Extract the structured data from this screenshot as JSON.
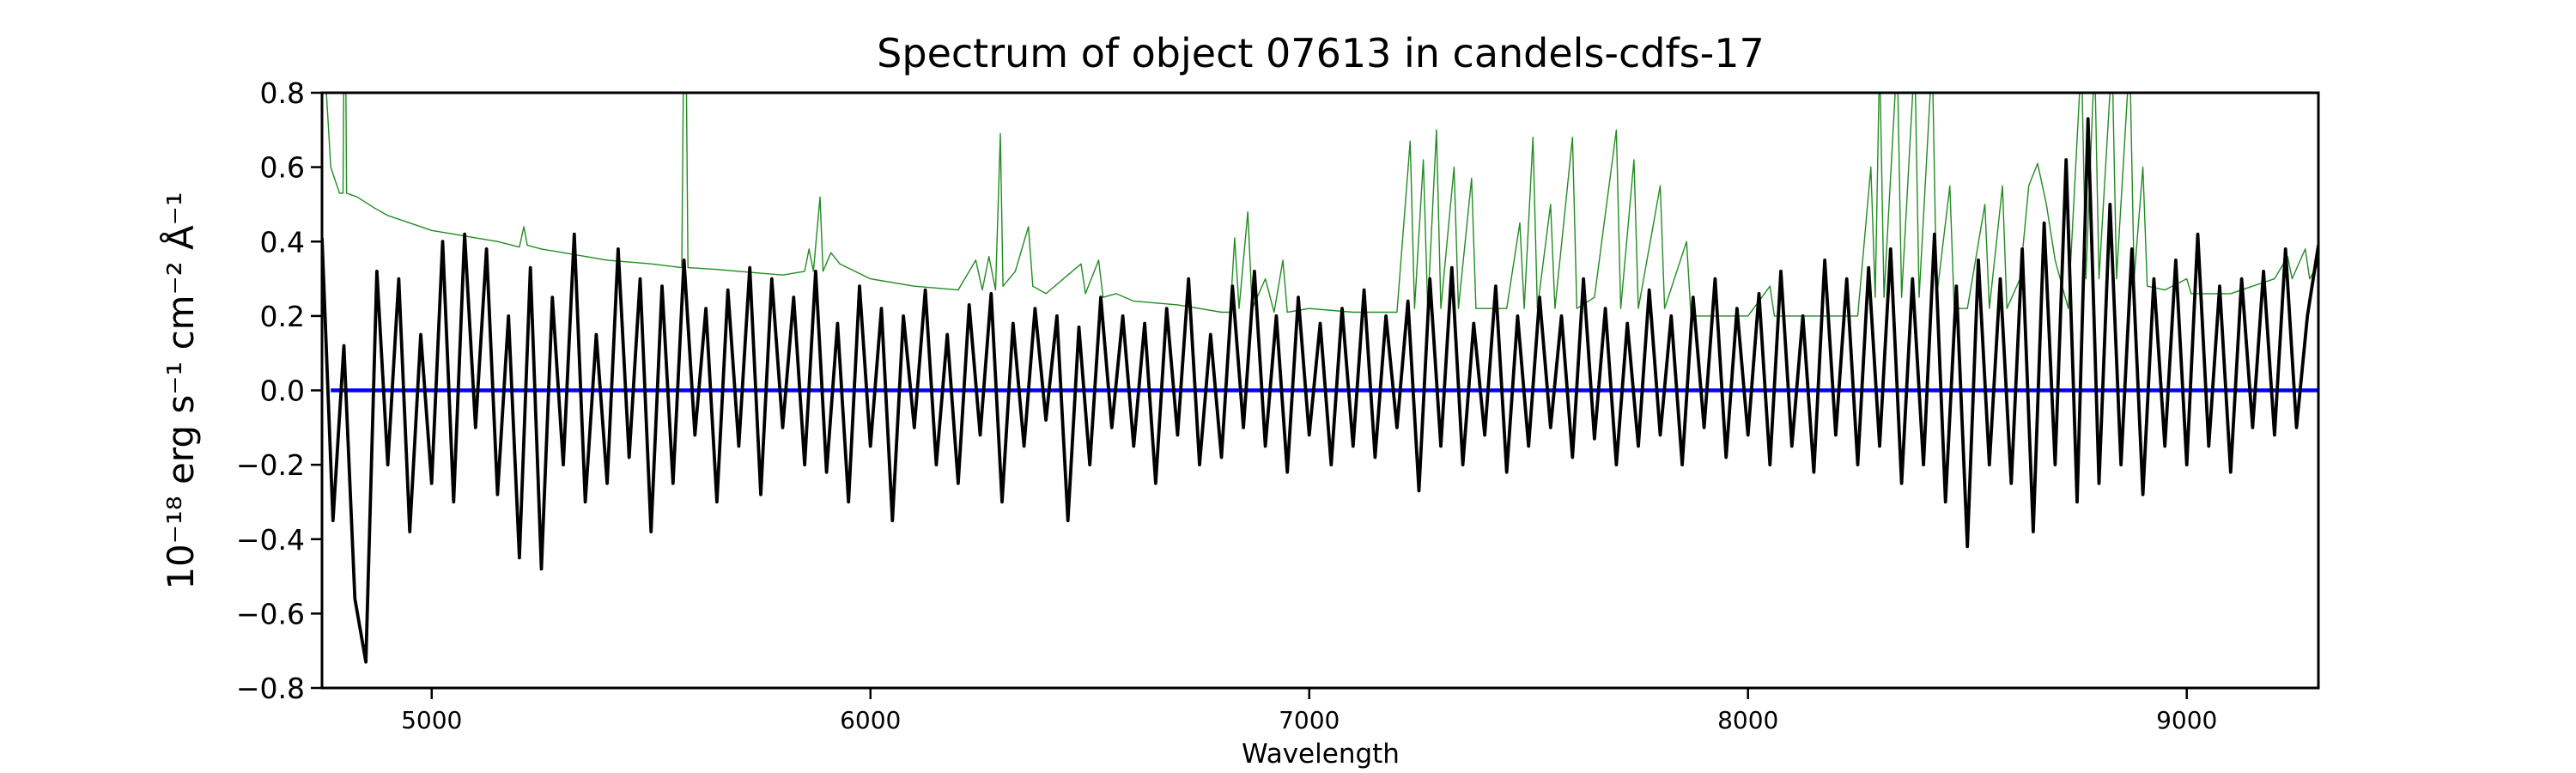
{
  "chart_data": {
    "type": "line",
    "title": "Spectrum of object 07613 in candels-cdfs-17",
    "xlabel": "Wavelength",
    "ylabel": "10⁻¹⁸ erg s⁻¹ cm⁻² Å⁻¹",
    "xlim": [
      4750,
      9300
    ],
    "ylim": [
      -0.8,
      0.8
    ],
    "xticks": [
      5000,
      6000,
      7000,
      8000,
      9000
    ],
    "xtick_labels": [
      "5000",
      "6000",
      "7000",
      "8000",
      "9000"
    ],
    "yticks": [
      -0.8,
      -0.6,
      -0.4,
      -0.2,
      0.0,
      0.2,
      0.4,
      0.6,
      0.8
    ],
    "ytick_labels": [
      "−0.8",
      "−0.6",
      "−0.4",
      "−0.2",
      "0.0",
      "0.2",
      "0.4",
      "0.6",
      "0.8"
    ],
    "grid": false,
    "series": [
      {
        "role": "flux",
        "color": "#000000",
        "x_start": 4750,
        "x_step": 25,
        "values": [
          0.41,
          -0.35,
          0.12,
          -0.56,
          -0.73,
          0.32,
          -0.2,
          0.3,
          -0.38,
          0.15,
          -0.25,
          0.4,
          -0.3,
          0.42,
          -0.1,
          0.38,
          -0.28,
          0.2,
          -0.45,
          0.33,
          -0.48,
          0.25,
          -0.2,
          0.42,
          -0.3,
          0.15,
          -0.25,
          0.38,
          -0.18,
          0.3,
          -0.38,
          0.28,
          -0.25,
          0.35,
          -0.12,
          0.22,
          -0.3,
          0.27,
          -0.15,
          0.33,
          -0.28,
          0.3,
          -0.1,
          0.25,
          -0.2,
          0.32,
          -0.22,
          0.18,
          -0.3,
          0.28,
          -0.15,
          0.22,
          -0.35,
          0.2,
          -0.1,
          0.27,
          -0.2,
          0.15,
          -0.25,
          0.23,
          -0.12,
          0.26,
          -0.3,
          0.18,
          -0.15,
          0.22,
          -0.08,
          0.2,
          -0.35,
          0.17,
          -0.2,
          0.25,
          -0.1,
          0.2,
          -0.15,
          0.18,
          -0.25,
          0.22,
          -0.12,
          0.3,
          -0.2,
          0.15,
          -0.18,
          0.28,
          -0.1,
          0.32,
          -0.15,
          0.2,
          -0.22,
          0.25,
          -0.12,
          0.18,
          -0.2,
          0.22,
          -0.15,
          0.27,
          -0.18,
          0.2,
          -0.1,
          0.24,
          -0.27,
          0.3,
          -0.15,
          0.33,
          -0.2,
          0.18,
          -0.12,
          0.28,
          -0.22,
          0.2,
          -0.15,
          0.25,
          -0.1,
          0.2,
          -0.18,
          0.3,
          -0.13,
          0.22,
          -0.2,
          0.18,
          -0.15,
          0.27,
          -0.12,
          0.2,
          -0.2,
          0.25,
          -0.1,
          0.3,
          -0.18,
          0.22,
          -0.12,
          0.26,
          -0.2,
          0.32,
          -0.15,
          0.2,
          -0.22,
          0.35,
          -0.12,
          0.3,
          -0.2,
          0.33,
          -0.15,
          0.38,
          -0.25,
          0.3,
          -0.2,
          0.42,
          -0.3,
          0.28,
          -0.42,
          0.35,
          -0.2,
          0.3,
          -0.25,
          0.38,
          -0.38,
          0.45,
          -0.2,
          0.62,
          -0.3,
          0.73,
          -0.25,
          0.5,
          -0.2,
          0.38,
          -0.28,
          0.3,
          -0.15,
          0.35,
          -0.2,
          0.42,
          -0.15,
          0.28,
          -0.22,
          0.3,
          -0.1,
          0.32,
          -0.12,
          0.38,
          -0.1,
          0.2,
          0.39
        ]
      },
      {
        "role": "error",
        "color": "#228b22",
        "points": [
          [
            4755,
            0.9
          ],
          [
            4770,
            0.6
          ],
          [
            4790,
            0.53
          ],
          [
            4798,
            0.53
          ],
          [
            4800,
            0.9
          ],
          [
            4804,
            0.9
          ],
          [
            4806,
            0.53
          ],
          [
            4830,
            0.52
          ],
          [
            4870,
            0.49
          ],
          [
            4900,
            0.47
          ],
          [
            4950,
            0.45
          ],
          [
            5000,
            0.43
          ],
          [
            5050,
            0.42
          ],
          [
            5100,
            0.41
          ],
          [
            5150,
            0.4
          ],
          [
            5200,
            0.385
          ],
          [
            5210,
            0.44
          ],
          [
            5218,
            0.39
          ],
          [
            5250,
            0.38
          ],
          [
            5300,
            0.37
          ],
          [
            5350,
            0.36
          ],
          [
            5400,
            0.35
          ],
          [
            5450,
            0.345
          ],
          [
            5500,
            0.34
          ],
          [
            5570,
            0.33
          ],
          [
            5574,
            0.9
          ],
          [
            5580,
            0.9
          ],
          [
            5584,
            0.33
          ],
          [
            5650,
            0.325
          ],
          [
            5700,
            0.32
          ],
          [
            5800,
            0.31
          ],
          [
            5850,
            0.32
          ],
          [
            5860,
            0.38
          ],
          [
            5870,
            0.32
          ],
          [
            5885,
            0.52
          ],
          [
            5892,
            0.32
          ],
          [
            5910,
            0.37
          ],
          [
            5930,
            0.34
          ],
          [
            6000,
            0.3
          ],
          [
            6100,
            0.28
          ],
          [
            6200,
            0.27
          ],
          [
            6240,
            0.35
          ],
          [
            6255,
            0.27
          ],
          [
            6270,
            0.36
          ],
          [
            6285,
            0.27
          ],
          [
            6296,
            0.69
          ],
          [
            6302,
            0.28
          ],
          [
            6330,
            0.32
          ],
          [
            6360,
            0.44
          ],
          [
            6370,
            0.28
          ],
          [
            6400,
            0.26
          ],
          [
            6480,
            0.34
          ],
          [
            6490,
            0.26
          ],
          [
            6520,
            0.35
          ],
          [
            6530,
            0.25
          ],
          [
            6560,
            0.26
          ],
          [
            6600,
            0.24
          ],
          [
            6700,
            0.23
          ],
          [
            6800,
            0.21
          ],
          [
            6820,
            0.21
          ],
          [
            6830,
            0.41
          ],
          [
            6840,
            0.22
          ],
          [
            6860,
            0.48
          ],
          [
            6870,
            0.22
          ],
          [
            6900,
            0.3
          ],
          [
            6920,
            0.21
          ],
          [
            6940,
            0.35
          ],
          [
            6950,
            0.21
          ],
          [
            7000,
            0.22
          ],
          [
            7100,
            0.21
          ],
          [
            7200,
            0.21
          ],
          [
            7230,
            0.67
          ],
          [
            7240,
            0.22
          ],
          [
            7260,
            0.62
          ],
          [
            7270,
            0.22
          ],
          [
            7290,
            0.7
          ],
          [
            7300,
            0.22
          ],
          [
            7330,
            0.6
          ],
          [
            7340,
            0.22
          ],
          [
            7370,
            0.57
          ],
          [
            7380,
            0.22
          ],
          [
            7450,
            0.22
          ],
          [
            7480,
            0.45
          ],
          [
            7490,
            0.22
          ],
          [
            7510,
            0.68
          ],
          [
            7520,
            0.22
          ],
          [
            7550,
            0.5
          ],
          [
            7560,
            0.22
          ],
          [
            7600,
            0.68
          ],
          [
            7610,
            0.22
          ],
          [
            7650,
            0.25
          ],
          [
            7700,
            0.7
          ],
          [
            7710,
            0.22
          ],
          [
            7740,
            0.62
          ],
          [
            7750,
            0.22
          ],
          [
            7800,
            0.55
          ],
          [
            7810,
            0.22
          ],
          [
            7860,
            0.4
          ],
          [
            7870,
            0.2
          ],
          [
            7950,
            0.2
          ],
          [
            8000,
            0.2
          ],
          [
            8050,
            0.28
          ],
          [
            8060,
            0.2
          ],
          [
            8150,
            0.2
          ],
          [
            8250,
            0.2
          ],
          [
            8280,
            0.6
          ],
          [
            8290,
            0.25
          ],
          [
            8300,
            0.9
          ],
          [
            8310,
            0.25
          ],
          [
            8340,
            0.9
          ],
          [
            8350,
            0.25
          ],
          [
            8380,
            0.9
          ],
          [
            8390,
            0.25
          ],
          [
            8420,
            0.9
          ],
          [
            8430,
            0.25
          ],
          [
            8460,
            0.55
          ],
          [
            8470,
            0.22
          ],
          [
            8500,
            0.22
          ],
          [
            8540,
            0.5
          ],
          [
            8550,
            0.22
          ],
          [
            8580,
            0.55
          ],
          [
            8590,
            0.22
          ],
          [
            8620,
            0.3
          ],
          [
            8640,
            0.55
          ],
          [
            8660,
            0.61
          ],
          [
            8680,
            0.5
          ],
          [
            8700,
            0.35
          ],
          [
            8730,
            0.22
          ],
          [
            8760,
            0.9
          ],
          [
            8770,
            0.3
          ],
          [
            8790,
            0.9
          ],
          [
            8800,
            0.3
          ],
          [
            8830,
            0.9
          ],
          [
            8840,
            0.3
          ],
          [
            8870,
            0.9
          ],
          [
            8880,
            0.3
          ],
          [
            8900,
            0.6
          ],
          [
            8910,
            0.28
          ],
          [
            8950,
            0.27
          ],
          [
            9000,
            0.3
          ],
          [
            9010,
            0.26
          ],
          [
            9100,
            0.26
          ],
          [
            9150,
            0.28
          ],
          [
            9200,
            0.3
          ],
          [
            9230,
            0.36
          ],
          [
            9240,
            0.3
          ],
          [
            9270,
            0.38
          ],
          [
            9280,
            0.3
          ],
          [
            9300,
            0.34
          ]
        ]
      },
      {
        "role": "zero",
        "color": "#0000ff",
        "points": [
          [
            4770,
            0.0
          ],
          [
            9300,
            0.0
          ]
        ]
      }
    ]
  }
}
